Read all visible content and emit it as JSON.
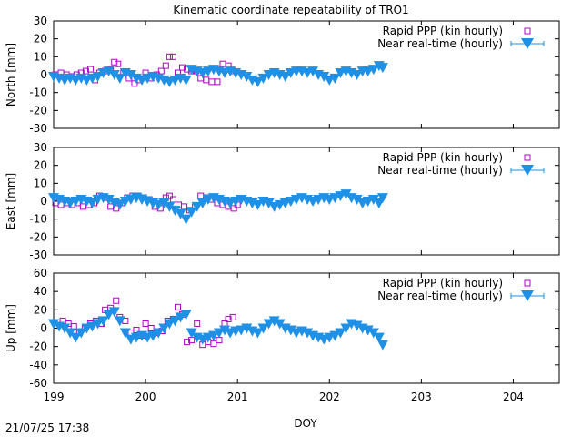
{
  "chart_data": {
    "type": "scatter",
    "title": "Kinematic coordinate repeatability of TRO1",
    "xlabel": "DOY",
    "xlim": [
      199,
      204.5
    ],
    "xticks": [
      "199",
      "200",
      "201",
      "202",
      "203",
      "204"
    ],
    "timestamp": "21/07/25 17:38",
    "colors": {
      "rapid": "#b000c8",
      "nrt": "#1e90e6"
    },
    "legend": [
      "Rapid PPP (kin hourly)",
      "Near real-time (hourly)"
    ],
    "panels": [
      {
        "ylabel": "North [mm]",
        "ylim": [
          -30,
          30
        ],
        "yticks": [
          "30",
          "20",
          "10",
          "0",
          "-10",
          "-20",
          "-30"
        ],
        "series": [
          {
            "name": "Rapid PPP (kin hourly)",
            "x": [
              199.02,
              199.08,
              199.14,
              199.2,
              199.25,
              199.3,
              199.35,
              199.4,
              199.45,
              199.5,
              199.56,
              199.62,
              199.66,
              199.7,
              199.76,
              199.82,
              199.88,
              199.94,
              200.0,
              200.06,
              200.12,
              200.17,
              200.22,
              200.26,
              200.3,
              200.35,
              200.4,
              200.45,
              200.5,
              200.55,
              200.6,
              200.66,
              200.72,
              200.78,
              200.84,
              200.9,
              200.95
            ],
            "y": [
              0,
              1,
              0,
              -1,
              0,
              1,
              2,
              3,
              -3,
              1,
              2,
              3,
              7,
              6,
              1,
              -2,
              -5,
              -3,
              1,
              -2,
              0,
              2,
              5,
              10,
              10,
              1,
              4,
              3,
              2,
              2,
              -2,
              -3,
              -4,
              -4,
              6,
              5,
              2
            ]
          },
          {
            "name": "Near real-time (hourly)",
            "x": [
              199.0,
              199.06,
              199.12,
              199.18,
              199.24,
              199.3,
              199.36,
              199.42,
              199.48,
              199.54,
              199.6,
              199.66,
              199.72,
              199.78,
              199.84,
              199.9,
              199.96,
              200.02,
              200.08,
              200.14,
              200.2,
              200.26,
              200.32,
              200.38,
              200.44,
              200.5,
              200.56,
              200.62,
              200.68,
              200.74,
              200.8,
              200.86,
              200.92,
              200.98,
              201.04,
              201.1,
              201.16,
              201.22,
              201.28,
              201.34,
              201.4,
              201.46,
              201.52,
              201.58,
              201.64,
              201.7,
              201.76,
              201.82,
              201.88,
              201.94,
              202.0,
              202.06,
              202.12,
              202.18,
              202.24,
              202.3,
              202.36,
              202.42,
              202.48,
              202.54,
              202.58
            ],
            "y": [
              -1,
              -2,
              -3,
              -2,
              -3,
              -2,
              -3,
              -2,
              -1,
              1,
              2,
              0,
              -2,
              1,
              0,
              -2,
              -3,
              -2,
              -1,
              -2,
              -3,
              -4,
              -3,
              -2,
              -3,
              3,
              2,
              1,
              2,
              3,
              2,
              1,
              2,
              1,
              0,
              -1,
              -3,
              -4,
              -2,
              0,
              1,
              0,
              -1,
              1,
              2,
              2,
              1,
              2,
              0,
              -1,
              -3,
              -2,
              1,
              2,
              1,
              0,
              2,
              2,
              3,
              5,
              4
            ]
          }
        ]
      },
      {
        "ylabel": "East [mm]",
        "ylim": [
          -30,
          30
        ],
        "yticks": [
          "30",
          "20",
          "10",
          "0",
          "-10",
          "-20",
          "-30"
        ],
        "series": [
          {
            "name": "Rapid PPP (kin hourly)",
            "x": [
              199.02,
              199.08,
              199.14,
              199.2,
              199.26,
              199.32,
              199.38,
              199.44,
              199.5,
              199.56,
              199.62,
              199.68,
              199.74,
              199.8,
              199.86,
              199.92,
              199.98,
              200.04,
              200.1,
              200.16,
              200.22,
              200.26,
              200.3,
              200.36,
              200.42,
              200.48,
              200.54,
              200.6,
              200.66,
              200.72,
              200.78,
              200.84,
              200.9,
              200.96,
              201.0
            ],
            "y": [
              -1,
              -2,
              -1,
              -2,
              -1,
              -3,
              -2,
              -1,
              3,
              2,
              -3,
              -4,
              -1,
              2,
              3,
              3,
              2,
              1,
              -3,
              -4,
              2,
              3,
              1,
              -2,
              -3,
              -5,
              -3,
              3,
              2,
              1,
              -1,
              -2,
              -3,
              -4,
              -2
            ]
          },
          {
            "name": "Near real-time (hourly)",
            "x": [
              199.0,
              199.06,
              199.12,
              199.18,
              199.24,
              199.3,
              199.36,
              199.42,
              199.48,
              199.54,
              199.6,
              199.66,
              199.72,
              199.78,
              199.84,
              199.9,
              199.96,
              200.02,
              200.08,
              200.14,
              200.2,
              200.26,
              200.32,
              200.38,
              200.44,
              200.5,
              200.56,
              200.62,
              200.68,
              200.74,
              200.8,
              200.86,
              200.92,
              200.98,
              201.04,
              201.1,
              201.16,
              201.22,
              201.28,
              201.34,
              201.4,
              201.46,
              201.52,
              201.58,
              201.64,
              201.7,
              201.76,
              201.82,
              201.88,
              201.94,
              202.0,
              202.06,
              202.12,
              202.18,
              202.24,
              202.3,
              202.36,
              202.42,
              202.48,
              202.54,
              202.58
            ],
            "y": [
              2,
              1,
              0,
              -1,
              0,
              1,
              0,
              -1,
              1,
              2,
              1,
              -1,
              -2,
              0,
              1,
              2,
              1,
              0,
              -1,
              -2,
              -1,
              -3,
              -5,
              -7,
              -10,
              -6,
              -3,
              -1,
              1,
              2,
              1,
              0,
              -1,
              0,
              1,
              0,
              -1,
              -2,
              0,
              -1,
              -3,
              -2,
              -1,
              0,
              1,
              2,
              1,
              0,
              1,
              2,
              1,
              2,
              3,
              4,
              2,
              1,
              -1,
              0,
              1,
              -1,
              2
            ]
          }
        ]
      },
      {
        "ylabel": "Up [mm]",
        "ylim": [
          -60,
          60
        ],
        "yticks": [
          "60",
          "40",
          "20",
          "0",
          "-20",
          "-40",
          "-60"
        ],
        "series": [
          {
            "name": "Rapid PPP (kin hourly)",
            "x": [
              199.04,
              199.1,
              199.16,
              199.22,
              199.28,
              199.34,
              199.4,
              199.46,
              199.52,
              199.56,
              199.62,
              199.68,
              199.72,
              199.78,
              199.84,
              199.9,
              199.96,
              200.0,
              200.06,
              200.12,
              200.18,
              200.24,
              200.3,
              200.35,
              200.4,
              200.45,
              200.5,
              200.56,
              200.62,
              200.68,
              200.74,
              200.8,
              200.86,
              200.9,
              200.95
            ],
            "y": [
              6,
              8,
              5,
              2,
              -5,
              0,
              5,
              8,
              5,
              20,
              22,
              30,
              12,
              8,
              -5,
              -2,
              -8,
              5,
              0,
              -5,
              -3,
              8,
              10,
              23,
              15,
              -15,
              -13,
              5,
              -18,
              -15,
              -17,
              -13,
              5,
              10,
              12
            ]
          },
          {
            "name": "Near real-time (hourly)",
            "x": [
              199.0,
              199.06,
              199.12,
              199.18,
              199.24,
              199.3,
              199.36,
              199.42,
              199.48,
              199.54,
              199.6,
              199.66,
              199.72,
              199.78,
              199.84,
              199.9,
              199.96,
              200.02,
              200.08,
              200.14,
              200.2,
              200.26,
              200.32,
              200.38,
              200.44,
              200.5,
              200.56,
              200.62,
              200.68,
              200.74,
              200.8,
              200.86,
              200.92,
              200.98,
              201.04,
              201.1,
              201.16,
              201.22,
              201.28,
              201.34,
              201.4,
              201.46,
              201.52,
              201.58,
              201.64,
              201.7,
              201.76,
              201.82,
              201.88,
              201.94,
              202.0,
              202.06,
              202.12,
              202.18,
              202.24,
              202.3,
              202.36,
              202.42,
              202.48,
              202.54,
              202.58
            ],
            "y": [
              5,
              2,
              0,
              -5,
              -10,
              -5,
              0,
              2,
              5,
              8,
              15,
              18,
              8,
              -5,
              -12,
              -10,
              -8,
              -10,
              -8,
              -5,
              0,
              5,
              8,
              12,
              15,
              -5,
              -10,
              -12,
              -10,
              -8,
              -5,
              -2,
              -5,
              -3,
              -2,
              0,
              -3,
              -5,
              0,
              5,
              8,
              5,
              0,
              -2,
              -5,
              -3,
              -5,
              -8,
              -10,
              -12,
              -10,
              -8,
              -5,
              0,
              5,
              3,
              0,
              -2,
              -5,
              -10,
              -18
            ]
          }
        ]
      }
    ]
  }
}
